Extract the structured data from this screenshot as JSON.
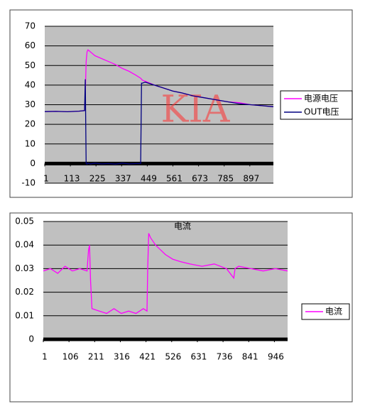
{
  "chart_data": [
    {
      "type": "line",
      "x": [
        1,
        50,
        100,
        150,
        175,
        178,
        182,
        186,
        190,
        200,
        220,
        250,
        280,
        310,
        340,
        370,
        400,
        420,
        424,
        428,
        440,
        480,
        520,
        560,
        600,
        650,
        700,
        750,
        800,
        850,
        900,
        950,
        1000
      ],
      "series": [
        {
          "name": "电源电压",
          "color": "#ff00ff",
          "values": [
            26.5,
            26.6,
            26.4,
            26.7,
            27,
            35,
            52,
            57,
            58,
            57,
            55,
            53.5,
            52,
            50.5,
            48.5,
            47,
            45,
            43.5,
            43,
            42.5,
            42,
            40,
            38.5,
            37,
            36,
            34.5,
            33.5,
            32.5,
            31.5,
            31,
            30,
            29.5,
            29
          ]
        },
        {
          "name": "OUT电压",
          "color": "#000080",
          "values": [
            26.5,
            26.6,
            26.4,
            26.7,
            27,
            43,
            0,
            -0.3,
            0.2,
            -0.2,
            0.2,
            -0.2,
            0,
            -0.3,
            0.2,
            -0.2,
            0,
            0,
            41,
            41,
            41.5,
            40,
            38.5,
            37,
            36,
            34.5,
            33.5,
            32.5,
            31.5,
            30.5,
            30,
            29.5,
            29
          ]
        }
      ],
      "xlim": [
        1,
        1000
      ],
      "xticks": [
        1,
        113,
        225,
        337,
        449,
        561,
        673,
        785,
        897
      ],
      "ylim": [
        -10,
        70
      ],
      "yticks": [
        -10,
        0,
        10,
        20,
        30,
        40,
        50,
        60,
        70
      ],
      "grid": true,
      "legend": "right",
      "watermark": "KIA"
    },
    {
      "type": "line",
      "title": "电流",
      "x": [
        1,
        30,
        60,
        90,
        120,
        150,
        180,
        186,
        190,
        194,
        200,
        230,
        260,
        290,
        320,
        350,
        380,
        410,
        425,
        428,
        432,
        440,
        460,
        480,
        500,
        530,
        560,
        600,
        650,
        700,
        750,
        780,
        785,
        800,
        850,
        900,
        950,
        1000
      ],
      "series": [
        {
          "name": "电流",
          "color": "#ff00ff",
          "values": [
            0.029,
            0.03,
            0.028,
            0.031,
            0.029,
            0.03,
            0.029,
            0.038,
            0.04,
            0.025,
            0.013,
            0.012,
            0.011,
            0.013,
            0.011,
            0.012,
            0.011,
            0.013,
            0.012,
            0.03,
            0.045,
            0.043,
            0.04,
            0.038,
            0.036,
            0.034,
            0.033,
            0.032,
            0.031,
            0.032,
            0.03,
            0.026,
            0.03,
            0.031,
            0.03,
            0.029,
            0.03,
            0.029
          ]
        }
      ],
      "xlim": [
        1,
        1000
      ],
      "xticks": [
        1,
        106,
        211,
        316,
        421,
        526,
        631,
        736,
        841,
        946
      ],
      "ylim": [
        0,
        0.05
      ],
      "yticks": [
        0,
        0.01,
        0.02,
        0.03,
        0.04,
        0.05
      ],
      "grid": true,
      "legend": "right"
    }
  ]
}
